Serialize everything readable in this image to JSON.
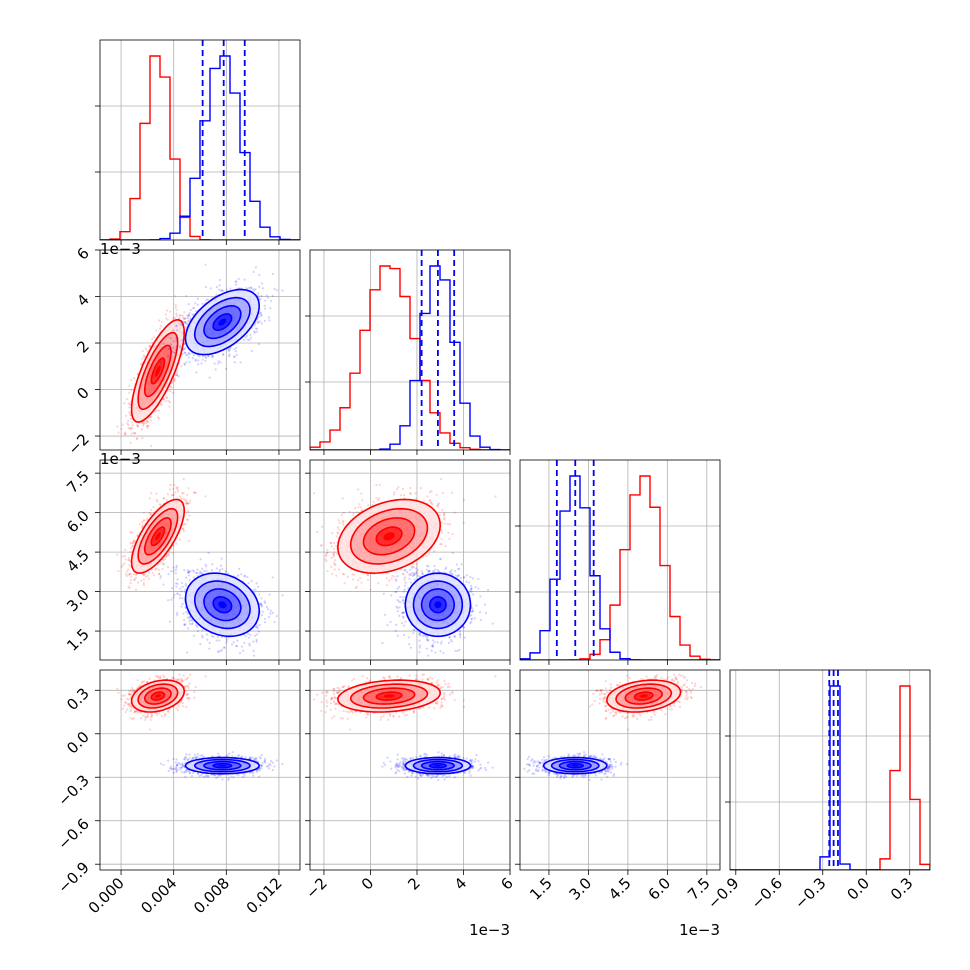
{
  "chart_data": {
    "type": "corner",
    "colors": {
      "red": "#ff0000",
      "blue": "#0000ff",
      "grid": "#b0b0b0"
    },
    "params": [
      {
        "range": [
          -0.0016,
          0.0136
        ],
        "ticks": [
          0.0,
          0.004,
          0.008,
          0.012
        ],
        "tick_labels": [
          "0.000",
          "0.004",
          "0.008",
          "0.012"
        ]
      },
      {
        "range": [
          -0.0026,
          0.006
        ],
        "ticks": [
          -0.002,
          0.0,
          0.002,
          0.004,
          0.006
        ],
        "tick_labels": [
          "−2",
          "0",
          "2",
          "4",
          "6"
        ],
        "offset_text": "1e−3"
      },
      {
        "range": [
          0.0004,
          0.008
        ],
        "ticks": [
          0.0015,
          0.003,
          0.0045,
          0.006,
          0.0075
        ],
        "tick_labels": [
          "1.5",
          "3.0",
          "4.5",
          "6.0",
          "7.5"
        ],
        "offset_text": "1e−3"
      },
      {
        "range": [
          -0.94,
          0.44
        ],
        "ticks": [
          -0.9,
          -0.6,
          -0.3,
          0.0,
          0.3
        ],
        "tick_labels": [
          "−0.9",
          "−0.6",
          "−0.3",
          "0.0",
          "0.3"
        ]
      }
    ],
    "series": [
      {
        "name": "",
        "color": "red",
        "mean": [
          0.0028,
          0.0008,
          0.0051,
          0.26
        ],
        "sd": [
          0.001,
          0.0011,
          0.0007,
          0.055
        ],
        "corr": [
          [
            1,
            0.75,
            0.7,
            0.3
          ],
          [
            0.75,
            1,
            0.3,
            0.2
          ],
          [
            0.7,
            0.3,
            1,
            0.25
          ],
          [
            0.3,
            0.2,
            0.25,
            1
          ]
        ],
        "quantiles": []
      },
      {
        "name": "",
        "color": "blue",
        "mean": [
          0.0077,
          0.0029,
          0.0025,
          -0.22
        ],
        "sd": [
          0.0014,
          0.0007,
          0.0006,
          0.028
        ],
        "corr": [
          [
            1,
            0.5,
            -0.2,
            0
          ],
          [
            0.5,
            1,
            0,
            0
          ],
          [
            -0.2,
            0,
            1,
            0
          ],
          [
            0,
            0,
            0,
            1
          ]
        ],
        "quantiles": [
          [
            0.0062,
            0.0078,
            0.0094
          ],
          [
            0.0022,
            0.0029,
            0.0036
          ],
          [
            0.0018,
            0.0025,
            0.0032
          ],
          [
            -0.255,
            -0.225,
            -0.195
          ]
        ]
      }
    ]
  }
}
